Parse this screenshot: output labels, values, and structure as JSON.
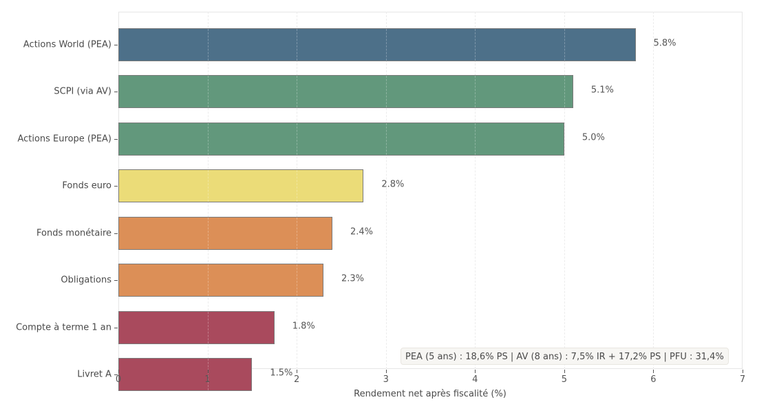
{
  "chart_data": {
    "type": "bar",
    "orientation": "horizontal",
    "title": "",
    "xlabel": "Rendement net après fiscalité (%)",
    "ylabel": "",
    "xlim": [
      0,
      7
    ],
    "xticks": [
      0,
      1,
      2,
      3,
      4,
      5,
      6,
      7
    ],
    "grid": true,
    "categories": [
      "Actions World (PEA)",
      "SCPI (via AV)",
      "Actions Europe (PEA)",
      "Fonds euro",
      "Fonds monétaire",
      "Obligations",
      "Compte à terme 1 an",
      "Livret A"
    ],
    "values": [
      5.8,
      5.1,
      5.0,
      2.75,
      2.4,
      2.3,
      1.75,
      1.5
    ],
    "value_labels": [
      "5.8%",
      "5.1%",
      "5.0%",
      "2.8%",
      "2.4%",
      "2.3%",
      "1.8%",
      "1.5%"
    ],
    "colors": [
      "#4d7089",
      "#62987c",
      "#62987c",
      "#ebdc78",
      "#dc8f57",
      "#dc8f57",
      "#a94a5d",
      "#a94a5d"
    ],
    "annotation": "PEA (5 ans) : 18,6% PS | AV (8 ans) : 7,5% IR + 17,2% PS | PFU : 31,4%"
  }
}
